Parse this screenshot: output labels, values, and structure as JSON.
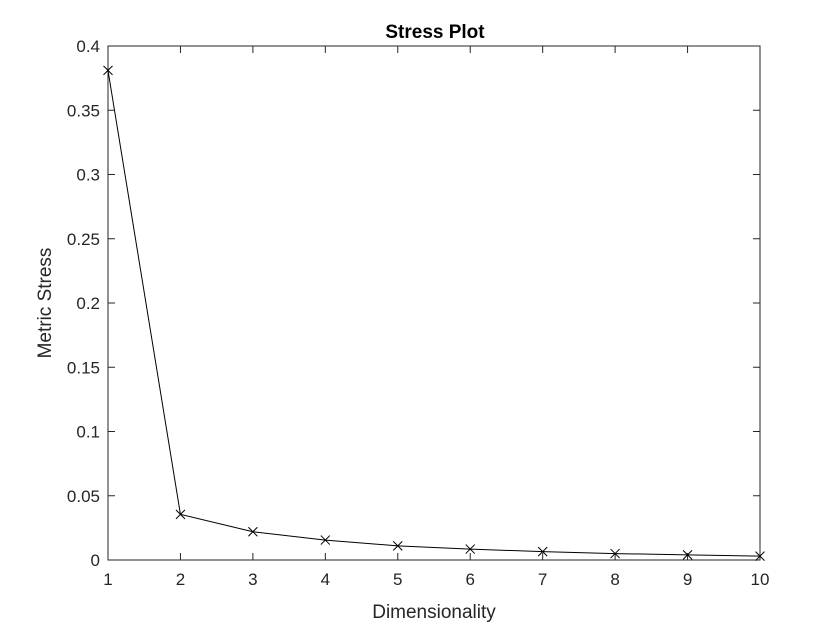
{
  "chart_data": {
    "type": "line",
    "title": "Stress Plot",
    "xlabel": "Dimensionality",
    "ylabel": "Metric Stress",
    "x": [
      1,
      2,
      3,
      4,
      5,
      6,
      7,
      8,
      9,
      10
    ],
    "series": [
      {
        "values": [
          0.381,
          0.0355,
          0.022,
          0.0155,
          0.011,
          0.0085,
          0.0065,
          0.005,
          0.004,
          0.003
        ]
      }
    ],
    "xlim": [
      1,
      10
    ],
    "ylim": [
      0,
      0.4
    ],
    "xticks": [
      1,
      2,
      3,
      4,
      5,
      6,
      7,
      8,
      9,
      10
    ],
    "yticks": [
      0,
      0.05,
      0.1,
      0.15,
      0.2,
      0.25,
      0.3,
      0.35,
      0.4
    ],
    "xtick_labels": [
      "1",
      "2",
      "3",
      "4",
      "5",
      "6",
      "7",
      "8",
      "9",
      "10"
    ],
    "ytick_labels": [
      "0",
      "0.05",
      "0.1",
      "0.15",
      "0.2",
      "0.25",
      "0.3",
      "0.35",
      "0.4"
    ],
    "marker": "x",
    "line_color": "#000000",
    "axes_color": "#262626",
    "grid": false,
    "box": true
  }
}
